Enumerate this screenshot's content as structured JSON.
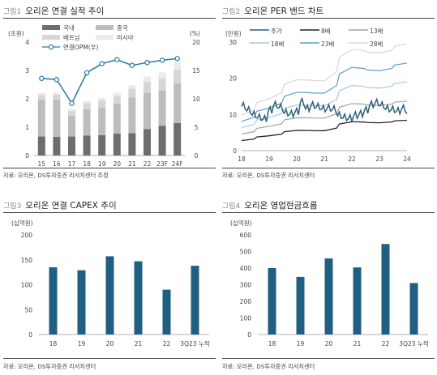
{
  "charts": [
    {
      "fig": "그림1",
      "title": "오리온 연결 실적 추이",
      "source": "자료: 오리온, DS투자증권 리서치센터 추정",
      "ylabel_left": "(조원)",
      "ylabel_right": "(%)"
    },
    {
      "fig": "그림2",
      "title": "오리온 PER 밴드 차트",
      "source": "자료: 오리온, DS투자증권 리서치센터",
      "ylabel": "(만원)"
    },
    {
      "fig": "그림3",
      "title": "오리온 연결 CAPEX 추이",
      "source": "자료: 오리온, DS투자증권 리서치센터",
      "ylabel": "(십억원)"
    },
    {
      "fig": "그림4",
      "title": "오리온 영업현금흐름",
      "source": "자료: 오리온, DS투자증권 리서치센터",
      "ylabel": "(십억원)"
    }
  ],
  "chart_data": [
    {
      "type": "bar",
      "stacked": true,
      "categories": [
        "15",
        "16",
        "17",
        "18",
        "19",
        "20",
        "21",
        "22",
        "23F",
        "24F"
      ],
      "ylim": [
        0,
        4
      ],
      "yticks": [
        0,
        1,
        2,
        3,
        4
      ],
      "y2lim": [
        0,
        20
      ],
      "y2ticks": [
        0,
        5,
        10,
        15,
        20
      ],
      "legend": "top-left",
      "series": [
        {
          "name": "국내",
          "color": "#6d6d6d",
          "values": [
            0.67,
            0.66,
            0.67,
            0.7,
            0.72,
            0.77,
            0.79,
            0.93,
            1.05,
            1.15
          ]
        },
        {
          "name": "중국",
          "color": "#bdbdbd",
          "values": [
            1.3,
            1.32,
            0.72,
            0.93,
            0.97,
            1.06,
            1.26,
            1.28,
            1.24,
            1.4
          ]
        },
        {
          "name": "베트남",
          "color": "#d6d6d6",
          "values": [
            0.16,
            0.17,
            0.18,
            0.22,
            0.26,
            0.28,
            0.31,
            0.39,
            0.43,
            0.47
          ]
        },
        {
          "name": "러시아",
          "color": "#ebebeb",
          "values": [
            0.07,
            0.07,
            0.07,
            0.08,
            0.08,
            0.1,
            0.12,
            0.19,
            0.22,
            0.26
          ]
        }
      ],
      "line": {
        "name": "연결OPM(우)",
        "color": "#2a76a6",
        "axis": "right",
        "values": [
          13.6,
          13.4,
          9.2,
          14.6,
          16.2,
          16.9,
          15.9,
          16.4,
          16.8,
          17.1
        ]
      }
    },
    {
      "type": "line",
      "x_years": [
        "18",
        "19",
        "20",
        "21",
        "22",
        "23",
        "24"
      ],
      "ylim": [
        0,
        30
      ],
      "yticks": [
        0,
        10,
        20,
        30
      ],
      "legend": "top",
      "bands": [
        {
          "name": "8배",
          "color": "#222222",
          "values": [
            2.8,
            4.1,
            5.6,
            5.5,
            8.0,
            7.7,
            8.4
          ]
        },
        {
          "name": "13배",
          "color": "#9aa3ab",
          "values": [
            4.6,
            6.7,
            9.1,
            9.0,
            13.0,
            12.5,
            13.7
          ]
        },
        {
          "name": "18배",
          "color": "#a8c8de",
          "values": [
            6.4,
            9.2,
            12.6,
            12.4,
            18.0,
            17.3,
            19.0
          ]
        },
        {
          "name": "23배",
          "color": "#5b9fcb",
          "values": [
            8.1,
            11.8,
            16.1,
            15.9,
            23.0,
            22.1,
            24.2
          ]
        },
        {
          "name": "28배",
          "color": "#d8d8d8",
          "values": [
            9.9,
            14.4,
            19.6,
            19.3,
            28.0,
            27.0,
            29.5
          ]
        }
      ],
      "price": {
        "name": "주가",
        "color": "#2e5f7d",
        "values": [
          12.2,
          11.0,
          9.8,
          9.0,
          8.6,
          11.0,
          12.5,
          11.8,
          10.3,
          10.0,
          10.6,
          13.3,
          11.5,
          12.4,
          12.0,
          11.4,
          11.6,
          11.3,
          9.6,
          9.0,
          8.8,
          9.6,
          10.0,
          11.0,
          12.6,
          13.1,
          12.4,
          11.4,
          11.2,
          10.8,
          11.5,
          10.2
        ]
      }
    },
    {
      "type": "bar",
      "categories": [
        "18",
        "19",
        "20",
        "21",
        "22",
        "3Q23 누적"
      ],
      "values": [
        135,
        129,
        157,
        147,
        90,
        138
      ],
      "ylim": [
        0,
        200
      ],
      "yticks": [
        0,
        50,
        100,
        150,
        200
      ],
      "color": "#1f5f80"
    },
    {
      "type": "bar",
      "categories": [
        "18",
        "19",
        "20",
        "21",
        "22",
        "3Q23 누적"
      ],
      "values": [
        400,
        347,
        458,
        404,
        545,
        310
      ],
      "ylim": [
        0,
        600
      ],
      "yticks": [
        0,
        100,
        200,
        300,
        400,
        500,
        600
      ],
      "color": "#1f5f80"
    }
  ]
}
